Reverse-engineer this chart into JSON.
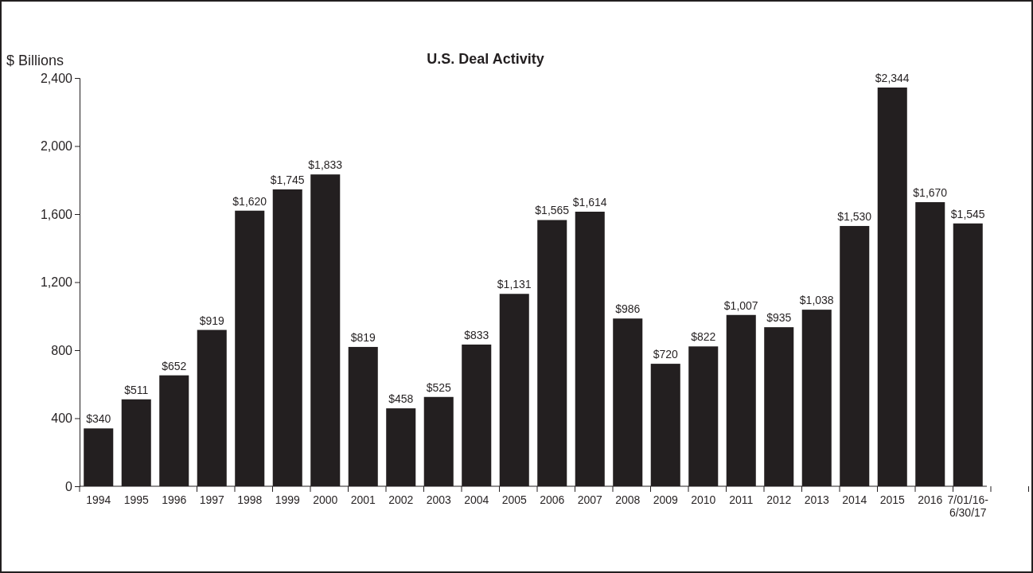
{
  "chart_data": {
    "type": "bar",
    "title": "U.S. Deal Activity",
    "ylabel": "$ Billions",
    "categories": [
      "1994",
      "1995",
      "1996",
      "1997",
      "1998",
      "1999",
      "2000",
      "2001",
      "2002",
      "2003",
      "2004",
      "2005",
      "2006",
      "2007",
      "2008",
      "2009",
      "2010",
      "2011",
      "2012",
      "2013",
      "2014",
      "2015",
      "2016",
      "7/01/16-6/30/17"
    ],
    "values": [
      340,
      511,
      652,
      919,
      1620,
      1745,
      1833,
      819,
      458,
      525,
      833,
      1131,
      1565,
      1614,
      986,
      720,
      822,
      1007,
      935,
      1038,
      1530,
      2344,
      1670,
      1545
    ],
    "value_labels": [
      "$340",
      "$511",
      "$652",
      "$919",
      "$1,620",
      "$1,745",
      "$1,833",
      "$819",
      "$458",
      "$525",
      "$833",
      "$1,131",
      "$1,565",
      "$1,614",
      "$986",
      "$720",
      "$822",
      "$1,007",
      "$935",
      "$1,038",
      "$1,530",
      "$2,344",
      "$1,670",
      "$1,545"
    ],
    "color": "#231f20",
    "ylim": [
      0,
      2400
    ],
    "yticks": [
      {
        "value": 0,
        "label": "0"
      },
      {
        "value": 400,
        "label": "400"
      },
      {
        "value": 800,
        "label": "800"
      },
      {
        "value": 1200,
        "label": "1,200"
      },
      {
        "value": 1600,
        "label": "1,600"
      },
      {
        "value": 2000,
        "label": "2,000"
      },
      {
        "value": 2400,
        "label": "2,400"
      }
    ],
    "grid": false
  }
}
